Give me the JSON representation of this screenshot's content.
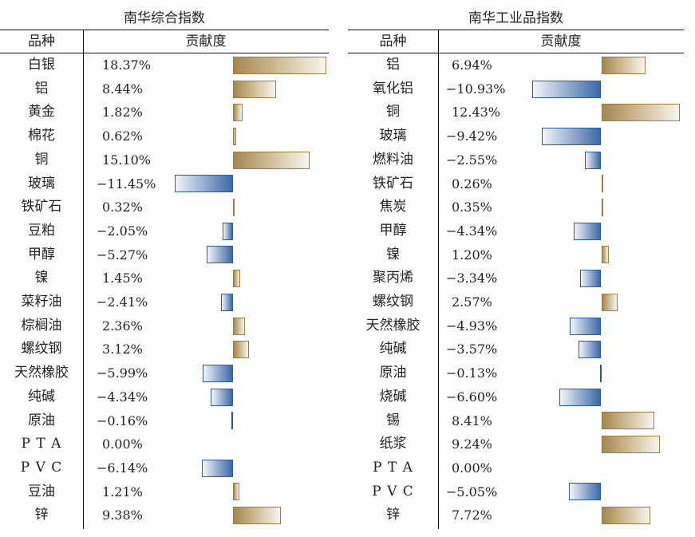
{
  "columns": {
    "category": "品种",
    "contribution": "贡献度"
  },
  "chart_data": [
    {
      "type": "bar",
      "orientation": "horizontal",
      "title": "南华综合指数",
      "value_label": "贡献度",
      "unit": "%",
      "categories": [
        "白银",
        "铝",
        "黄金",
        "棉花",
        "铜",
        "玻璃",
        "铁矿石",
        "豆粕",
        "甲醇",
        "镍",
        "菜籽油",
        "棕榈油",
        "螺纹钢",
        "天然橡胶",
        "纯碱",
        "原油",
        "PTA",
        "PVC",
        "豆油",
        "锌"
      ],
      "values": [
        18.37,
        8.44,
        1.82,
        0.62,
        15.1,
        -11.45,
        0.32,
        -2.05,
        -5.27,
        1.45,
        -2.41,
        2.36,
        3.12,
        -5.99,
        -4.34,
        -0.16,
        0.0,
        -6.14,
        1.21,
        9.38
      ],
      "labels": [
        "18.37%",
        "8.44%",
        "1.82%",
        "0.62%",
        "15.10%",
        "-11.45%",
        "0.32%",
        "-2.05%",
        "-5.27%",
        "1.45%",
        "-2.41%",
        "2.36%",
        "3.12%",
        "-5.99%",
        "-4.34%",
        "-0.16%",
        "0.00%",
        "-6.14%",
        "1.21%",
        "9.38%"
      ],
      "positive_color": "#a48752",
      "negative_color": "#3b69a8"
    },
    {
      "type": "bar",
      "orientation": "horizontal",
      "title": "南华工业品指数",
      "value_label": "贡献度",
      "unit": "%",
      "categories": [
        "铝",
        "氧化铝",
        "铜",
        "玻璃",
        "燃料油",
        "铁矿石",
        "焦炭",
        "甲醇",
        "镍",
        "聚丙烯",
        "螺纹钢",
        "天然橡胶",
        "纯碱",
        "原油",
        "烧碱",
        "锡",
        "纸浆",
        "PTA",
        "PVC",
        "锌"
      ],
      "values": [
        6.94,
        -10.93,
        12.43,
        -9.42,
        -2.55,
        0.26,
        0.35,
        -4.34,
        1.2,
        -3.34,
        2.57,
        -4.93,
        -3.57,
        -0.13,
        -6.6,
        8.41,
        9.24,
        0.0,
        -5.05,
        7.72
      ],
      "labels": [
        "6.94%",
        "-10.93%",
        "12.43%",
        "-9.42%",
        "-2.55%",
        "0.26%",
        "0.35%",
        "-4.34%",
        "1.20%",
        "-3.34%",
        "2.57%",
        "-4.93%",
        "-3.57%",
        "-0.13%",
        "-6.60%",
        "8.41%",
        "9.24%",
        "0.00%",
        "-5.05%",
        "7.72%"
      ],
      "positive_color": "#a48752",
      "negative_color": "#3b69a8"
    }
  ]
}
